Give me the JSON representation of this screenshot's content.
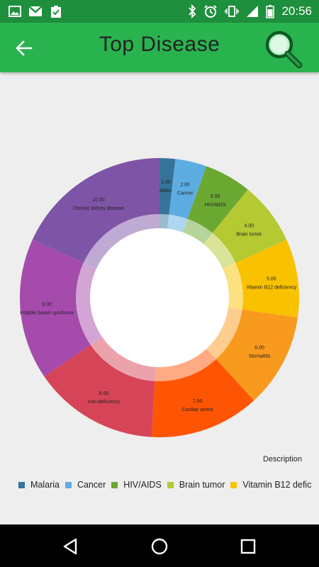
{
  "status_bar": {
    "time": "20:56",
    "left_icons": [
      "image-icon",
      "gmail-icon",
      "clipboard-check-icon"
    ],
    "right_icons": [
      "bluetooth-icon",
      "alarm-icon",
      "vibrate-icon",
      "signal-icon",
      "battery-icon"
    ]
  },
  "app_bar": {
    "title": "Top Disease",
    "color": "#29b34f",
    "back_icon": "arrow-left-icon",
    "search_icon": "magnifier-icon"
  },
  "chart_data": {
    "type": "pie",
    "style": "donut",
    "slices": [
      {
        "label": "Malaria",
        "value": 1.0,
        "value_label": "1.00",
        "color": "#35739a"
      },
      {
        "label": "Cancer",
        "value": 2.0,
        "value_label": "2.00",
        "color": "#5dade2"
      },
      {
        "label": "HIV/AIDS",
        "value": 3.0,
        "value_label": "3.00",
        "color": "#6aa832"
      },
      {
        "label": "Brain tumor",
        "value": 4.0,
        "value_label": "4.00",
        "color": "#b5c933"
      },
      {
        "label": "Vitamin B12 deficiency",
        "value": 5.0,
        "value_label": "5.00",
        "color": "#f9c200"
      },
      {
        "label": "Stomatitis",
        "value": 6.0,
        "value_label": "6.00",
        "color": "#f89a1e"
      },
      {
        "label": "Cardiac arrest",
        "value": 7.0,
        "value_label": "7.00",
        "color": "#fe5505"
      },
      {
        "label": "Iron deficiency",
        "value": 8.0,
        "value_label": "8.00",
        "color": "#d64557"
      },
      {
        "label": "Irritable bowel syndrome",
        "value": 9.0,
        "value_label": "9.00",
        "color": "#a54bab"
      },
      {
        "label": "Chronic kidney disease",
        "value": 10.0,
        "value_label": "10.00",
        "color": "#7e54a6"
      }
    ],
    "description": "Description",
    "legend_placement": "bottom"
  },
  "legend": {
    "items": [
      {
        "label": "Malaria",
        "color": "#35739a"
      },
      {
        "label": "Cancer",
        "color": "#5dade2"
      },
      {
        "label": "HIV/AIDS",
        "color": "#6aa832"
      },
      {
        "label": "Brain tumor",
        "color": "#b5c933"
      },
      {
        "label": "Vitamin B12 defic",
        "color": "#f9c200"
      }
    ]
  },
  "nav_bar": {
    "buttons": [
      "back-triangle-icon",
      "home-circle-icon",
      "recents-square-icon"
    ]
  }
}
